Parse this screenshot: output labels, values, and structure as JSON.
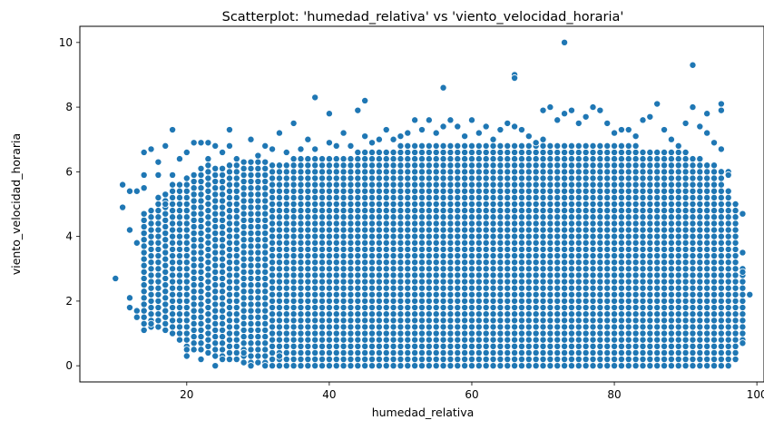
{
  "chart_data": {
    "type": "scatter",
    "title": "Scatterplot: 'humedad_relativa' vs 'viento_velocidad_horaria'",
    "xlabel": "humedad_relativa",
    "ylabel": "viento_velocidad_horaria",
    "xlim": [
      5,
      101
    ],
    "ylim": [
      -0.5,
      10.5
    ],
    "x_ticks": [
      20,
      40,
      60,
      80,
      100
    ],
    "y_ticks": [
      0,
      2,
      4,
      6,
      8,
      10
    ],
    "grid": false,
    "legend": "none",
    "marker_color": "#1f77b4",
    "marker_edge_color": "#ffffff",
    "series": [
      {
        "description_note": "",
        "points": [
          [
            10,
            2.7
          ],
          [
            11,
            5.6
          ],
          [
            11,
            4.9
          ],
          [
            12,
            4.2
          ],
          [
            12,
            5.4
          ],
          [
            12,
            2.1
          ],
          [
            12,
            1.8
          ],
          [
            13,
            5.4
          ],
          [
            13,
            3.8
          ],
          [
            13,
            1.7
          ],
          [
            13,
            1.5
          ],
          [
            14,
            6.6
          ],
          [
            14,
            5.9
          ],
          [
            14,
            5.5
          ],
          [
            14,
            1.1
          ],
          [
            15,
            6.7
          ],
          [
            15,
            1.3
          ],
          [
            16,
            6.3
          ],
          [
            16,
            5.9
          ],
          [
            16,
            5.2
          ],
          [
            16,
            1.4
          ],
          [
            17,
            6.8
          ],
          [
            17,
            5.0
          ],
          [
            18,
            7.3
          ],
          [
            18,
            5.9
          ],
          [
            18,
            1.0
          ],
          [
            19,
            6.4
          ],
          [
            19,
            0.8
          ],
          [
            20,
            6.6
          ],
          [
            20,
            0.5
          ],
          [
            20,
            0.3
          ],
          [
            21,
            6.9
          ],
          [
            21,
            0.5
          ],
          [
            22,
            6.9
          ],
          [
            22,
            0.2
          ],
          [
            22,
            0.5
          ],
          [
            23,
            6.9
          ],
          [
            23,
            6.4
          ],
          [
            24,
            6.8
          ],
          [
            24,
            0.0
          ],
          [
            24,
            0.3
          ],
          [
            25,
            6.6
          ],
          [
            25,
            0.2
          ],
          [
            26,
            7.3
          ],
          [
            26,
            6.8
          ],
          [
            27,
            6.4
          ],
          [
            28,
            6.1
          ],
          [
            28,
            0.4
          ],
          [
            29,
            7.0
          ],
          [
            29,
            0.0
          ],
          [
            30,
            6.5
          ],
          [
            30,
            0.3
          ],
          [
            31,
            6.8
          ],
          [
            31,
            0.0
          ],
          [
            32,
            6.7
          ],
          [
            33,
            7.2
          ],
          [
            33,
            0.3
          ],
          [
            34,
            6.6
          ],
          [
            35,
            7.5
          ],
          [
            36,
            6.7
          ],
          [
            37,
            7.0
          ],
          [
            38,
            8.3
          ],
          [
            38,
            6.7
          ],
          [
            39,
            6.4
          ],
          [
            40,
            7.8
          ],
          [
            40,
            6.9
          ],
          [
            41,
            6.8
          ],
          [
            42,
            7.2
          ],
          [
            43,
            6.8
          ],
          [
            44,
            7.9
          ],
          [
            45,
            8.2
          ],
          [
            45,
            7.1
          ],
          [
            46,
            6.9
          ],
          [
            47,
            7.0
          ],
          [
            48,
            7.3
          ],
          [
            49,
            7.0
          ],
          [
            50,
            7.1
          ],
          [
            51,
            7.2
          ],
          [
            52,
            7.6
          ],
          [
            53,
            7.3
          ],
          [
            54,
            7.6
          ],
          [
            55,
            7.2
          ],
          [
            56,
            8.6
          ],
          [
            56,
            7.4
          ],
          [
            57,
            7.6
          ],
          [
            58,
            7.4
          ],
          [
            59,
            7.1
          ],
          [
            60,
            7.6
          ],
          [
            61,
            7.2
          ],
          [
            62,
            7.4
          ],
          [
            63,
            7.0
          ],
          [
            64,
            7.3
          ],
          [
            65,
            7.5
          ],
          [
            66,
            9.0
          ],
          [
            66,
            8.9
          ],
          [
            66,
            7.4
          ],
          [
            67,
            7.3
          ],
          [
            68,
            7.1
          ],
          [
            69,
            6.9
          ],
          [
            70,
            7.9
          ],
          [
            71,
            8.0
          ],
          [
            72,
            7.6
          ],
          [
            73,
            10.0
          ],
          [
            73,
            7.8
          ],
          [
            74,
            7.9
          ],
          [
            75,
            7.5
          ],
          [
            76,
            7.7
          ],
          [
            77,
            8.0
          ],
          [
            78,
            7.9
          ],
          [
            79,
            7.5
          ],
          [
            80,
            7.2
          ],
          [
            81,
            7.3
          ],
          [
            82,
            7.3
          ],
          [
            83,
            7.1
          ],
          [
            84,
            7.6
          ],
          [
            85,
            7.7
          ],
          [
            86,
            8.1
          ],
          [
            87,
            7.3
          ],
          [
            88,
            7.0
          ],
          [
            89,
            6.8
          ],
          [
            90,
            7.5
          ],
          [
            91,
            9.3
          ],
          [
            91,
            8.0
          ],
          [
            92,
            7.4
          ],
          [
            93,
            7.8
          ],
          [
            93,
            7.2
          ],
          [
            94,
            6.9
          ],
          [
            95,
            8.1
          ],
          [
            95,
            7.9
          ],
          [
            95,
            6.7
          ],
          [
            96,
            6.0
          ],
          [
            96,
            5.9
          ],
          [
            97,
            4.6
          ],
          [
            97,
            0.6
          ],
          [
            98,
            4.7
          ],
          [
            98,
            3.5
          ],
          [
            98,
            0.7
          ],
          [
            98,
            2.9
          ],
          [
            99,
            2.2
          ]
        ]
      }
    ],
    "dense_region": {
      "x_range": [
        14,
        98
      ],
      "y_step": 0.1,
      "upper_edge": [
        [
          14,
          4.7
        ],
        [
          18,
          5.6
        ],
        [
          22,
          6.2
        ],
        [
          26,
          6.3
        ],
        [
          30,
          6.3
        ],
        [
          40,
          6.5
        ],
        [
          50,
          6.8
        ],
        [
          60,
          6.9
        ],
        [
          70,
          7.0
        ],
        [
          80,
          6.9
        ],
        [
          90,
          6.6
        ],
        [
          95,
          6.1
        ],
        [
          97,
          5.0
        ],
        [
          98,
          3.0
        ]
      ],
      "lower_edge": [
        [
          14,
          1.3
        ],
        [
          18,
          1.0
        ],
        [
          20,
          0.6
        ],
        [
          24,
          0.3
        ],
        [
          28,
          0.1
        ],
        [
          35,
          0.0
        ],
        [
          60,
          0.0
        ],
        [
          96,
          0.0
        ],
        [
          97,
          0.2
        ],
        [
          98,
          0.8
        ]
      ]
    }
  }
}
